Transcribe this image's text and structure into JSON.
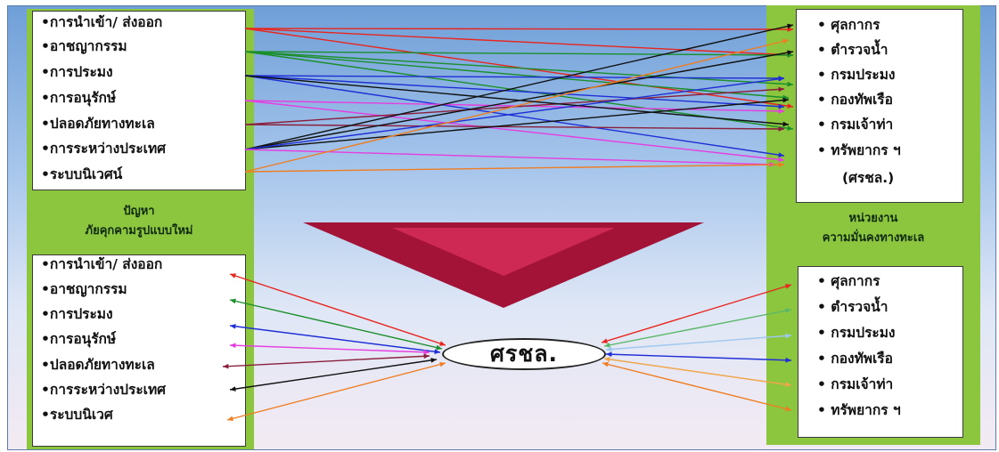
{
  "left_panel": {
    "top_items": [
      "•การนำเข้า/ ส่งออก",
      "•อาชญากรรม",
      "•การประมง",
      "•การอนุรักษ์",
      "•ปลอดภัยทางทะเล",
      "•การระหว่างประเทศ",
      "•ระบบนิเวศน์"
    ],
    "caption_line1": "ปัญหา",
    "caption_line2": "ภัยคุกคามรูปแบบใหม่",
    "bottom_items": [
      "•การนำเข้า/ ส่งออก",
      "•อาชญากรรม",
      "•การประมง",
      "•การอนุรักษ์",
      "•ปลอดภัยทางทะเล",
      "•การระหว่างประเทศ",
      "•ระบบนิเวศ"
    ]
  },
  "right_panel": {
    "top_items": [
      "• ศุลกากร",
      "• ตำรวจน้ำ",
      "• กรมประมง",
      "• กองทัพเรือ",
      "• กรมเจ้าท่า",
      "• ทรัพยากร ฯ",
      "(ศรชล.)"
    ],
    "caption_line1": "หน่วยงาน",
    "caption_line2": "ความมั่นคงทางทะเล",
    "bottom_items": [
      "• ศุลกากร",
      "• ตำรวจน้ำ",
      "• กรมประมง",
      "• กองทัพเรือ",
      "• กรมเจ้าท่า",
      "• ทรัพยากร ฯ"
    ]
  },
  "hub": {
    "label": "ศรชล."
  },
  "colors": {
    "red": "#e8261e",
    "green": "#1a8f2a",
    "blue": "#1f2fd6",
    "magenta": "#e63de0",
    "maroon": "#8a1f3c",
    "black": "#111111",
    "orange": "#ef7d22",
    "lightgreen": "#58b868",
    "lightblue": "#9ec8ee",
    "lightorange": "#f0a64c"
  }
}
